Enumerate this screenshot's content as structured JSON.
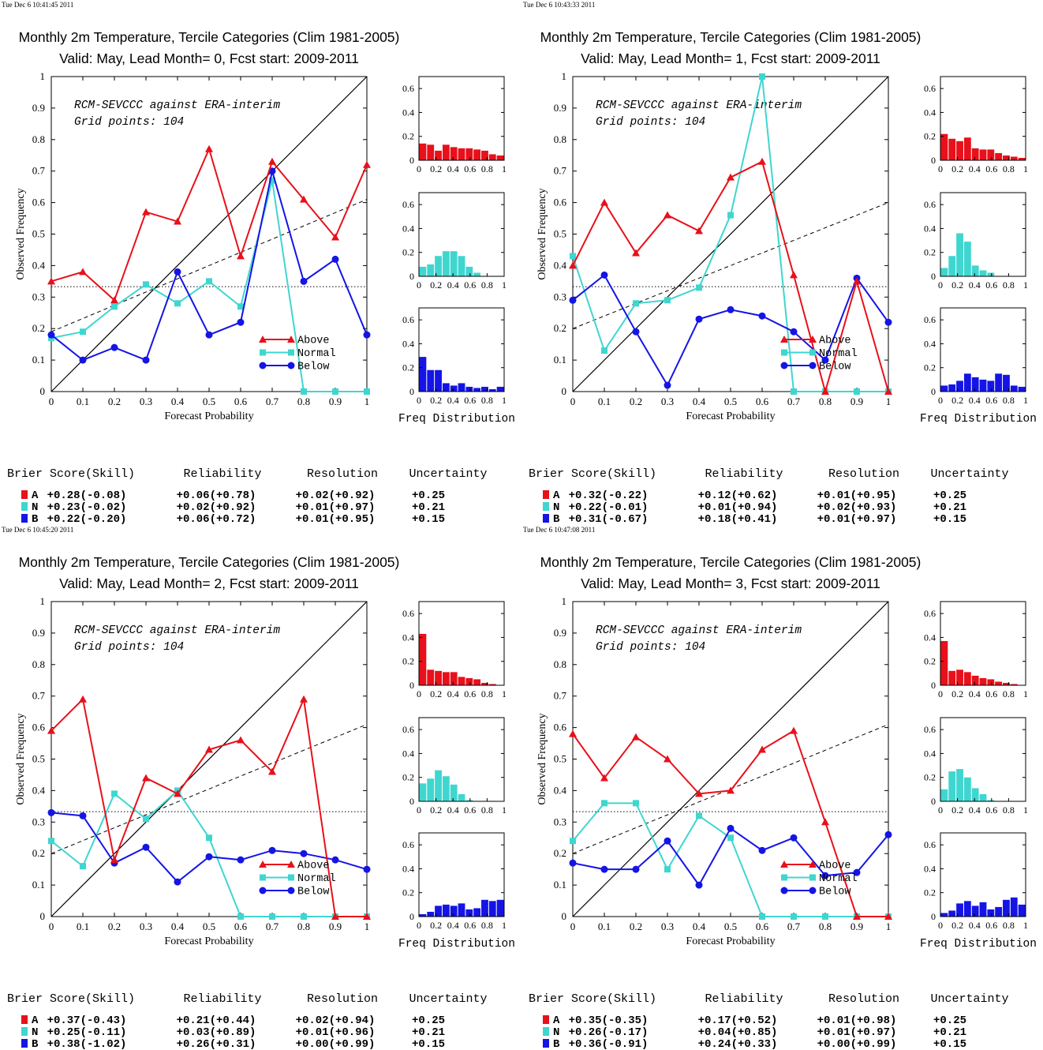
{
  "colors": {
    "above": "#e8101a",
    "normal": "#3fd6d0",
    "below": "#1414e6"
  },
  "panels": [
    {
      "timestamp": "Tue Dec  6 10:41:45 2011",
      "title": "Monthly 2m Temperature, Tercile Categories (Clim 1981-2005)",
      "subtitle": "Valid: May, Lead Month= 0, Fcst start: 2009-2011",
      "annotation1": "RCM-SEVCCC against ERA-interim",
      "annotation2": "Grid points:  104",
      "xlabel": "Forecast Probability",
      "ylabel": "Observed Frequency",
      "hist_label": "Freq Distribution",
      "chart_data": {
        "type": "line",
        "x": [
          0,
          0.1,
          0.2,
          0.3,
          0.4,
          0.5,
          0.6,
          0.7,
          0.8,
          0.9,
          1
        ],
        "xlim": [
          0,
          1
        ],
        "ylim": [
          0,
          1
        ],
        "climatology": 0.333,
        "reliability_line": [
          0.19,
          0.61
        ],
        "series": [
          {
            "name": "Above",
            "values": [
              0.35,
              0.38,
              0.29,
              0.57,
              0.54,
              0.77,
              0.43,
              0.73,
              0.61,
              0.49,
              0.72
            ]
          },
          {
            "name": "Normal",
            "values": [
              0.17,
              0.19,
              0.27,
              0.34,
              0.28,
              0.35,
              0.27,
              0.67,
              0,
              0,
              0
            ]
          },
          {
            "name": "Below",
            "values": [
              0.18,
              0.1,
              0.14,
              0.1,
              0.38,
              0.18,
              0.22,
              0.7,
              0.35,
              0.42,
              0.18
            ]
          }
        ],
        "histograms": {
          "above": [
            0.14,
            0.13,
            0.08,
            0.13,
            0.11,
            0.1,
            0.1,
            0.09,
            0.08,
            0.05,
            0.04
          ],
          "normal": [
            0.08,
            0.1,
            0.17,
            0.21,
            0.21,
            0.17,
            0.08,
            0.03,
            0,
            0,
            0
          ],
          "below": [
            0.29,
            0.18,
            0.18,
            0.07,
            0.05,
            0.07,
            0.04,
            0.03,
            0.04,
            0.02,
            0.04
          ]
        }
      },
      "scores": {
        "headers": [
          "Brier Score(Skill)",
          "Reliability",
          "Resolution",
          "Uncertainty"
        ],
        "rows": [
          {
            "label": "A",
            "brier": "+0.28(-0.08)",
            "reliability": "+0.06(+0.78)",
            "resolution": "+0.02(+0.92)",
            "uncertainty": "+0.25"
          },
          {
            "label": "N",
            "brier": "+0.23(-0.02)",
            "reliability": "+0.02(+0.92)",
            "resolution": "+0.01(+0.97)",
            "uncertainty": "+0.21"
          },
          {
            "label": "B",
            "brier": "+0.22(-0.20)",
            "reliability": "+0.06(+0.72)",
            "resolution": "+0.01(+0.95)",
            "uncertainty": "+0.15"
          }
        ]
      }
    },
    {
      "timestamp": "Tue Dec  6 10:43:33 2011",
      "title": "Monthly 2m Temperature, Tercile Categories (Clim 1981-2005)",
      "subtitle": "Valid: May, Lead Month= 1, Fcst start: 2009-2011",
      "annotation1": "RCM-SEVCCC against ERA-interim",
      "annotation2": "Grid points:  104",
      "xlabel": "Forecast Probability",
      "ylabel": "Observed Frequency",
      "hist_label": "Freq Distribution",
      "chart_data": {
        "type": "line",
        "x": [
          0,
          0.1,
          0.2,
          0.3,
          0.4,
          0.5,
          0.6,
          0.7,
          0.8,
          0.9,
          1
        ],
        "xlim": [
          0,
          1
        ],
        "ylim": [
          0,
          1
        ],
        "climatology": 0.333,
        "reliability_line": [
          0.2,
          0.6
        ],
        "series": [
          {
            "name": "Above",
            "values": [
              0.4,
              0.6,
              0.44,
              0.56,
              0.51,
              0.68,
              0.73,
              0.37,
              0,
              0.35,
              0
            ]
          },
          {
            "name": "Normal",
            "values": [
              0.43,
              0.13,
              0.28,
              0.29,
              0.33,
              0.56,
              1.0,
              0,
              0,
              0,
              0
            ]
          },
          {
            "name": "Below",
            "values": [
              0.29,
              0.37,
              0.19,
              0.02,
              0.23,
              0.26,
              0.24,
              0.19,
              0.1,
              0.36,
              0.22
            ]
          }
        ],
        "histograms": {
          "above": [
            0.22,
            0.18,
            0.16,
            0.19,
            0.1,
            0.09,
            0.09,
            0.06,
            0.04,
            0.03,
            0.02
          ],
          "normal": [
            0.07,
            0.17,
            0.36,
            0.29,
            0.09,
            0.05,
            0.03,
            0,
            0,
            0,
            0
          ],
          "below": [
            0.05,
            0.06,
            0.09,
            0.15,
            0.12,
            0.1,
            0.09,
            0.15,
            0.14,
            0.05,
            0.04
          ]
        }
      },
      "scores": {
        "headers": [
          "Brier Score(Skill)",
          "Reliability",
          "Resolution",
          "Uncertainty"
        ],
        "rows": [
          {
            "label": "A",
            "brier": "+0.32(-0.22)",
            "reliability": "+0.12(+0.62)",
            "resolution": "+0.01(+0.95)",
            "uncertainty": "+0.25"
          },
          {
            "label": "N",
            "brier": "+0.22(-0.01)",
            "reliability": "+0.01(+0.94)",
            "resolution": "+0.02(+0.93)",
            "uncertainty": "+0.21"
          },
          {
            "label": "B",
            "brier": "+0.31(-0.67)",
            "reliability": "+0.18(+0.41)",
            "resolution": "+0.01(+0.97)",
            "uncertainty": "+0.15"
          }
        ]
      }
    },
    {
      "timestamp": "Tue Dec  6 10:45:20 2011",
      "title": "Monthly 2m Temperature, Tercile Categories (Clim 1981-2005)",
      "subtitle": "Valid: May, Lead Month= 2, Fcst start: 2009-2011",
      "annotation1": "RCM-SEVCCC against ERA-interim",
      "annotation2": "Grid points:  104",
      "xlabel": "Forecast Probability",
      "ylabel": "Observed Frequency",
      "hist_label": "Freq Distribution",
      "chart_data": {
        "type": "line",
        "x": [
          0,
          0.1,
          0.2,
          0.3,
          0.4,
          0.5,
          0.6,
          0.7,
          0.8,
          0.9,
          1
        ],
        "xlim": [
          0,
          1
        ],
        "ylim": [
          0,
          1
        ],
        "climatology": 0.333,
        "reliability_line": [
          0.2,
          0.61
        ],
        "series": [
          {
            "name": "Above",
            "values": [
              0.59,
              0.69,
              0.18,
              0.44,
              0.39,
              0.53,
              0.56,
              0.46,
              0.69,
              0,
              0
            ]
          },
          {
            "name": "Normal",
            "values": [
              0.24,
              0.16,
              0.39,
              0.31,
              0.4,
              0.25,
              0,
              0,
              0,
              0,
              0
            ]
          },
          {
            "name": "Below",
            "values": [
              0.33,
              0.32,
              0.17,
              0.22,
              0.11,
              0.19,
              0.18,
              0.21,
              0.2,
              0.18,
              0.15
            ]
          }
        ],
        "histograms": {
          "above": [
            0.43,
            0.13,
            0.12,
            0.11,
            0.11,
            0.07,
            0.06,
            0.05,
            0.02,
            0.01,
            0
          ],
          "normal": [
            0.15,
            0.19,
            0.26,
            0.21,
            0.14,
            0.06,
            0.01,
            0,
            0,
            0,
            0
          ],
          "below": [
            0.02,
            0.04,
            0.09,
            0.1,
            0.09,
            0.11,
            0.06,
            0.07,
            0.14,
            0.13,
            0.14
          ]
        }
      },
      "scores": {
        "headers": [
          "Brier Score(Skill)",
          "Reliability",
          "Resolution",
          "Uncertainty"
        ],
        "rows": [
          {
            "label": "A",
            "brier": "+0.37(-0.43)",
            "reliability": "+0.21(+0.44)",
            "resolution": "+0.02(+0.94)",
            "uncertainty": "+0.25"
          },
          {
            "label": "N",
            "brier": "+0.25(-0.11)",
            "reliability": "+0.03(+0.89)",
            "resolution": "+0.01(+0.96)",
            "uncertainty": "+0.21"
          },
          {
            "label": "B",
            "brier": "+0.38(-1.02)",
            "reliability": "+0.26(+0.31)",
            "resolution": "+0.00(+0.99)",
            "uncertainty": "+0.15"
          }
        ]
      }
    },
    {
      "timestamp": "Tue Dec  6 10:47:08 2011",
      "title": "Monthly 2m Temperature, Tercile Categories (Clim 1981-2005)",
      "subtitle": "Valid: May, Lead Month= 3, Fcst start: 2009-2011",
      "annotation1": "RCM-SEVCCC against ERA-interim",
      "annotation2": "Grid points:  104",
      "xlabel": "Forecast Probability",
      "ylabel": "Observed Frequency",
      "hist_label": "Freq Distribution",
      "chart_data": {
        "type": "line",
        "x": [
          0,
          0.1,
          0.2,
          0.3,
          0.4,
          0.5,
          0.6,
          0.7,
          0.8,
          0.9,
          1
        ],
        "xlim": [
          0,
          1
        ],
        "ylim": [
          0,
          1
        ],
        "climatology": 0.333,
        "reliability_line": [
          0.2,
          0.61
        ],
        "series": [
          {
            "name": "Above",
            "values": [
              0.58,
              0.44,
              0.57,
              0.5,
              0.39,
              0.4,
              0.53,
              0.59,
              0.3,
              0,
              0
            ]
          },
          {
            "name": "Normal",
            "values": [
              0.24,
              0.36,
              0.36,
              0.15,
              0.32,
              0.25,
              0,
              0,
              0,
              0,
              0
            ]
          },
          {
            "name": "Below",
            "values": [
              0.17,
              0.15,
              0.15,
              0.24,
              0.1,
              0.28,
              0.21,
              0.25,
              0.13,
              0.14,
              0.26
            ]
          }
        ],
        "histograms": {
          "above": [
            0.37,
            0.12,
            0.13,
            0.11,
            0.08,
            0.06,
            0.05,
            0.03,
            0.02,
            0.01,
            0
          ],
          "normal": [
            0.1,
            0.25,
            0.27,
            0.2,
            0.11,
            0.06,
            0.01,
            0,
            0,
            0,
            0
          ],
          "below": [
            0.03,
            0.05,
            0.11,
            0.13,
            0.09,
            0.12,
            0.06,
            0.08,
            0.14,
            0.16,
            0.1
          ]
        }
      },
      "scores": {
        "headers": [
          "Brier Score(Skill)",
          "Reliability",
          "Resolution",
          "Uncertainty"
        ],
        "rows": [
          {
            "label": "A",
            "brier": "+0.35(-0.35)",
            "reliability": "+0.17(+0.52)",
            "resolution": "+0.01(+0.98)",
            "uncertainty": "+0.25"
          },
          {
            "label": "N",
            "brier": "+0.26(-0.17)",
            "reliability": "+0.04(+0.85)",
            "resolution": "+0.01(+0.97)",
            "uncertainty": "+0.21"
          },
          {
            "label": "B",
            "brier": "+0.36(-0.91)",
            "reliability": "+0.24(+0.33)",
            "resolution": "+0.00(+0.99)",
            "uncertainty": "+0.15"
          }
        ]
      }
    }
  ]
}
